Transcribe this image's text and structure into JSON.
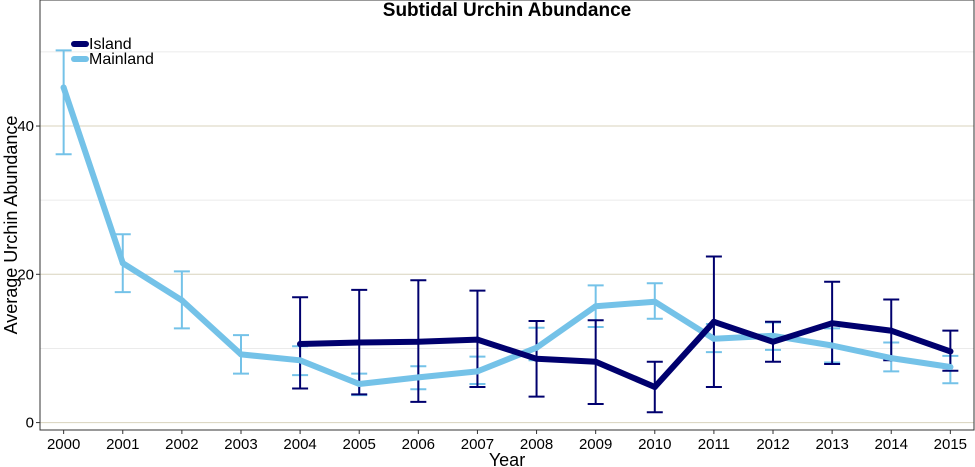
{
  "chart_data": {
    "type": "line",
    "title": "Subtidal Urchin Abundance",
    "xlabel": "Year",
    "ylabel": "Average Urchin Abundance",
    "x": [
      2000,
      2001,
      2002,
      2003,
      2004,
      2005,
      2006,
      2007,
      2008,
      2009,
      2010,
      2011,
      2012,
      2013,
      2014,
      2015
    ],
    "x_tick_labels": [
      "2000",
      "2001",
      "2002",
      "2003",
      "2004",
      "2005",
      "2006",
      "2007",
      "2008",
      "2009",
      "2010",
      "2011",
      "2012",
      "2013",
      "2014",
      "2015"
    ],
    "y_ticks": [
      0,
      20,
      40
    ],
    "y_tick_labels": [
      "0",
      "20",
      "40"
    ],
    "ylim": [
      -1,
      57
    ],
    "xlim": [
      1999.6,
      2015.4
    ],
    "grid": true,
    "legend_position": "top-left",
    "series": [
      {
        "name": "Island",
        "color": "#00006E",
        "x": [
          2004,
          2005,
          2006,
          2007,
          2008,
          2009,
          2010,
          2011,
          2012,
          2013,
          2014,
          2015
        ],
        "y": [
          10.6,
          10.8,
          10.9,
          11.2,
          8.6,
          8.2,
          4.8,
          13.6,
          10.9,
          13.4,
          12.4,
          9.6
        ],
        "err_low": [
          4.6,
          3.8,
          2.8,
          4.8,
          3.5,
          2.5,
          1.4,
          4.8,
          8.2,
          7.9,
          8.4,
          7.0
        ],
        "err_high": [
          16.9,
          17.9,
          19.2,
          17.8,
          13.7,
          13.8,
          8.2,
          22.4,
          13.6,
          19.0,
          16.6,
          12.4
        ]
      },
      {
        "name": "Mainland",
        "color": "#74C2E8",
        "x": [
          2000,
          2001,
          2002,
          2003,
          2004,
          2005,
          2006,
          2007,
          2008,
          2009,
          2010,
          2011,
          2012,
          2013,
          2014,
          2015
        ],
        "y": [
          45.2,
          21.5,
          16.5,
          9.2,
          8.4,
          5.2,
          6.1,
          6.9,
          10.1,
          15.7,
          16.3,
          11.3,
          11.7,
          10.4,
          8.7,
          7.5
        ],
        "err_low": [
          36.2,
          17.6,
          12.7,
          6.6,
          6.4,
          3.7,
          4.5,
          5.2,
          8.4,
          12.9,
          14.0,
          9.5,
          9.8,
          8.1,
          6.9,
          5.3
        ],
        "err_high": [
          50.2,
          25.4,
          20.4,
          11.8,
          10.3,
          6.6,
          7.6,
          8.9,
          12.8,
          18.5,
          18.8,
          13.3,
          13.5,
          12.7,
          10.8,
          9.0
        ]
      }
    ]
  }
}
